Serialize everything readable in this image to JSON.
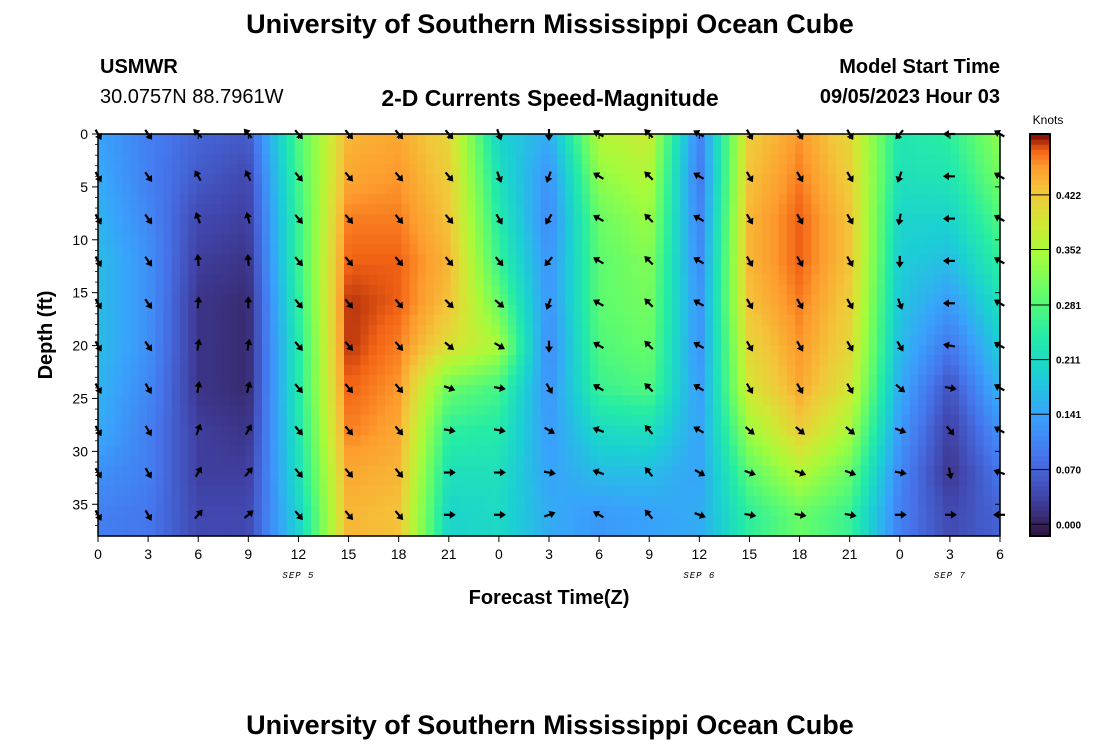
{
  "header": {
    "title": "University of Southern Mississippi Ocean Cube",
    "station": "USMWR",
    "coords": "30.0757N  88.7961W",
    "chart_name": "2-D Currents Speed-Magnitude",
    "model_start_label": "Model Start Time",
    "model_start_value": "09/05/2023 Hour 03"
  },
  "footer": {
    "title": "University of Southern Mississippi Ocean Cube"
  },
  "chart_data": {
    "type": "heatmap",
    "title": "2-D Currents Speed-Magnitude",
    "xlabel": "Forecast Time(Z)",
    "ylabel": "Depth (ft)",
    "x_ticks": [
      "0",
      "3",
      "6",
      "9",
      "12",
      "15",
      "18",
      "21",
      "0",
      "3",
      "6",
      "9",
      "12",
      "15",
      "18",
      "21",
      "0",
      "3",
      "6"
    ],
    "x_range_hours": [
      0,
      54
    ],
    "date_labels": [
      {
        "label": "SEP 5",
        "hour": 12
      },
      {
        "label": "SEP 6",
        "hour": 36
      },
      {
        "label": "SEP 7",
        "hour": 51
      }
    ],
    "y_ticks": [
      "0",
      "5",
      "10",
      "15",
      "20",
      "25",
      "30",
      "35"
    ],
    "y_range_ft": [
      0,
      38
    ],
    "colorbar": {
      "unit": "Knots",
      "ticks": [
        "0.000",
        "0.070",
        "0.141",
        "0.211",
        "0.281",
        "0.352",
        "0.422"
      ],
      "range": [
        -0.015,
        0.5
      ]
    },
    "arrow_depths_ft": [
      0,
      4,
      8,
      12,
      16,
      20,
      24,
      28,
      32,
      36
    ],
    "arrow_hours": [
      0,
      3,
      6,
      9,
      12,
      15,
      18,
      21,
      24,
      27,
      30,
      33,
      36,
      39,
      42,
      45,
      48,
      51,
      54
    ],
    "speed_profile_knots": [
      {
        "hour": 0,
        "values": [
          0.14,
          0.15,
          0.16,
          0.17,
          0.17,
          0.17,
          0.16,
          0.15,
          0.12,
          0.1
        ]
      },
      {
        "hour": 3,
        "values": [
          0.1,
          0.1,
          0.11,
          0.12,
          0.12,
          0.12,
          0.11,
          0.1,
          0.1,
          0.09
        ]
      },
      {
        "hour": 6,
        "values": [
          0.07,
          0.06,
          0.04,
          0.03,
          0.02,
          0.02,
          0.02,
          0.03,
          0.03,
          0.04
        ]
      },
      {
        "hour": 9,
        "values": [
          0.06,
          0.04,
          0.03,
          0.02,
          0.01,
          0.01,
          0.01,
          0.02,
          0.03,
          0.04
        ]
      },
      {
        "hour": 12,
        "values": [
          0.28,
          0.27,
          0.26,
          0.26,
          0.25,
          0.24,
          0.24,
          0.23,
          0.22,
          0.2
        ]
      },
      {
        "hour": 15,
        "values": [
          0.44,
          0.45,
          0.47,
          0.48,
          0.49,
          0.49,
          0.48,
          0.47,
          0.45,
          0.44
        ]
      },
      {
        "hour": 18,
        "values": [
          0.45,
          0.46,
          0.47,
          0.48,
          0.48,
          0.47,
          0.46,
          0.45,
          0.44,
          0.43
        ]
      },
      {
        "hour": 21,
        "values": [
          0.41,
          0.42,
          0.43,
          0.44,
          0.43,
          0.4,
          0.3,
          0.25,
          0.22,
          0.2
        ]
      },
      {
        "hour": 24,
        "values": [
          0.2,
          0.22,
          0.24,
          0.26,
          0.3,
          0.35,
          0.27,
          0.24,
          0.22,
          0.21
        ]
      },
      {
        "hour": 27,
        "values": [
          0.15,
          0.12,
          0.11,
          0.12,
          0.12,
          0.11,
          0.12,
          0.13,
          0.14,
          0.15
        ]
      },
      {
        "hour": 30,
        "values": [
          0.36,
          0.33,
          0.3,
          0.29,
          0.29,
          0.28,
          0.26,
          0.21,
          0.17,
          0.13
        ]
      },
      {
        "hour": 33,
        "values": [
          0.38,
          0.36,
          0.34,
          0.32,
          0.31,
          0.3,
          0.28,
          0.22,
          0.17,
          0.14
        ]
      },
      {
        "hour": 36,
        "values": [
          0.1,
          0.09,
          0.1,
          0.11,
          0.12,
          0.12,
          0.13,
          0.14,
          0.14,
          0.15
        ]
      },
      {
        "hour": 39,
        "values": [
          0.42,
          0.43,
          0.44,
          0.44,
          0.43,
          0.41,
          0.39,
          0.34,
          0.29,
          0.25
        ]
      },
      {
        "hour": 42,
        "values": [
          0.46,
          0.47,
          0.48,
          0.48,
          0.47,
          0.46,
          0.45,
          0.42,
          0.36,
          0.3
        ]
      },
      {
        "hour": 45,
        "values": [
          0.41,
          0.42,
          0.43,
          0.43,
          0.42,
          0.41,
          0.39,
          0.35,
          0.3,
          0.26
        ]
      },
      {
        "hour": 48,
        "values": [
          0.23,
          0.22,
          0.2,
          0.19,
          0.18,
          0.17,
          0.15,
          0.13,
          0.11,
          0.1
        ]
      },
      {
        "hour": 51,
        "values": [
          0.25,
          0.23,
          0.2,
          0.17,
          0.13,
          0.09,
          0.05,
          0.03,
          0.02,
          0.04
        ]
      },
      {
        "hour": 54,
        "values": [
          0.33,
          0.31,
          0.28,
          0.25,
          0.22,
          0.19,
          0.16,
          0.12,
          0.09,
          0.07
        ]
      }
    ],
    "direction_profile_deg": [
      {
        "hour": 0,
        "values": [
          150,
          150,
          150,
          150,
          150,
          150,
          150,
          150,
          150,
          150
        ]
      },
      {
        "hour": 3,
        "values": [
          145,
          145,
          145,
          145,
          145,
          145,
          150,
          150,
          150,
          150
        ]
      },
      {
        "hour": 6,
        "values": [
          315,
          330,
          340,
          355,
          5,
          10,
          10,
          20,
          30,
          40
        ]
      },
      {
        "hour": 9,
        "values": [
          320,
          335,
          345,
          355,
          0,
          10,
          15,
          30,
          40,
          50
        ]
      },
      {
        "hour": 12,
        "values": [
          140,
          140,
          140,
          140,
          140,
          140,
          140,
          140,
          140,
          140
        ]
      },
      {
        "hour": 15,
        "values": [
          140,
          140,
          140,
          140,
          140,
          140,
          140,
          140,
          140,
          140
        ]
      },
      {
        "hour": 18,
        "values": [
          140,
          140,
          140,
          140,
          140,
          140,
          140,
          140,
          140,
          140
        ]
      },
      {
        "hour": 21,
        "values": [
          140,
          140,
          140,
          140,
          135,
          130,
          110,
          100,
          90,
          90
        ]
      },
      {
        "hour": 24,
        "values": [
          160,
          160,
          150,
          140,
          130,
          120,
          100,
          100,
          90,
          90
        ]
      },
      {
        "hour": 27,
        "values": [
          180,
          200,
          210,
          220,
          200,
          180,
          150,
          120,
          100,
          70
        ]
      },
      {
        "hour": 30,
        "values": [
          300,
          300,
          300,
          300,
          300,
          300,
          300,
          290,
          290,
          300
        ]
      },
      {
        "hour": 33,
        "values": [
          315,
          315,
          315,
          315,
          315,
          315,
          315,
          320,
          320,
          320
        ]
      },
      {
        "hour": 36,
        "values": [
          300,
          300,
          300,
          300,
          300,
          300,
          300,
          300,
          120,
          110
        ]
      },
      {
        "hour": 39,
        "values": [
          150,
          150,
          150,
          150,
          150,
          150,
          150,
          130,
          110,
          100
        ]
      },
      {
        "hour": 42,
        "values": [
          150,
          150,
          150,
          150,
          150,
          150,
          150,
          130,
          110,
          100
        ]
      },
      {
        "hour": 45,
        "values": [
          150,
          150,
          150,
          150,
          150,
          150,
          150,
          130,
          110,
          100
        ]
      },
      {
        "hour": 48,
        "values": [
          220,
          200,
          190,
          180,
          160,
          150,
          130,
          110,
          100,
          90
        ]
      },
      {
        "hour": 51,
        "values": [
          270,
          270,
          270,
          270,
          270,
          280,
          100,
          140,
          170,
          90
        ]
      },
      {
        "hour": 54,
        "values": [
          300,
          300,
          300,
          300,
          300,
          300,
          300,
          300,
          290,
          270
        ]
      }
    ]
  },
  "colors": {
    "background": "#ffffff",
    "frame": "#000000",
    "arrow": "#000000"
  }
}
